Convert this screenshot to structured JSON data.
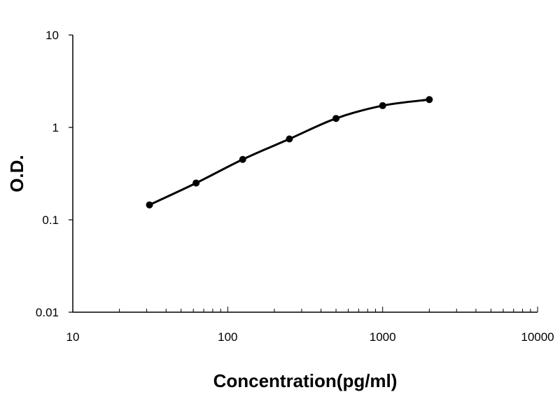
{
  "chart_data": {
    "type": "line",
    "title": "",
    "xlabel": "Concentration(pg/ml)",
    "ylabel": "O.D.",
    "x_scale": "log",
    "y_scale": "log",
    "xlim": [
      10,
      10000
    ],
    "ylim": [
      0.01,
      10
    ],
    "x_tick_labels": [
      "10",
      "100",
      "1000",
      "10000"
    ],
    "y_tick_labels": [
      "10",
      "1",
      "0.1",
      "0.01"
    ],
    "grid": false,
    "legend": "none",
    "series": [
      {
        "x": [
          31.25,
          62.5,
          125,
          250,
          500,
          1000,
          2000
        ],
        "y": [
          0.145,
          0.25,
          0.45,
          0.75,
          1.25,
          1.72,
          2.0
        ],
        "color": "#000000",
        "marker": "circle",
        "smooth": true
      }
    ]
  }
}
